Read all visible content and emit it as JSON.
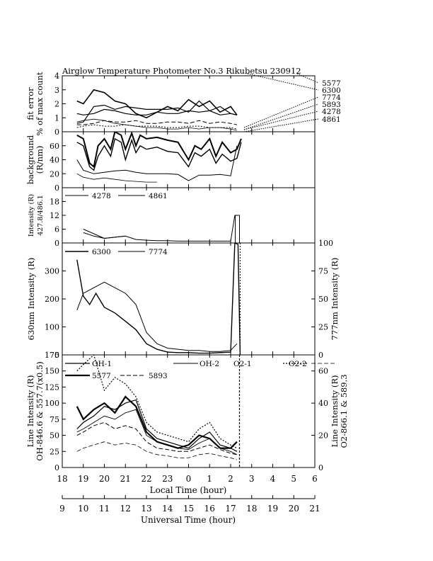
{
  "title": "Airglow Temperature Photometer No.3  Rikubetsu    230912",
  "x_axes": {
    "local": {
      "label": "Local Time (hour)",
      "ticks": [
        "18",
        "19",
        "20",
        "21",
        "22",
        "23",
        "0",
        "1",
        "2",
        "3",
        "4",
        "5",
        "6"
      ]
    },
    "universal": {
      "label": "Universal Time (hour)",
      "ticks": [
        "9",
        "10",
        "11",
        "12",
        "13",
        "14",
        "15",
        "16",
        "17",
        "18",
        "19",
        "20",
        "21"
      ]
    }
  },
  "chart_data": [
    {
      "id": "fit_error",
      "type": "line",
      "ylabel": [
        "fit error",
        "% of max count"
      ],
      "ylim": [
        0,
        4
      ],
      "yticks": [
        "0",
        "1",
        "2",
        "3",
        "4"
      ],
      "legend_labels": [
        "5577",
        "6300",
        "7774",
        "5893",
        "4278",
        "4861"
      ],
      "series": [
        {
          "name": "5577",
          "style": "solid",
          "width": 1.6,
          "x": [
            18.7,
            19.0,
            19.5,
            20.0,
            20.5,
            21.0,
            21.5,
            22.0,
            22.5,
            23.0,
            23.5,
            24.0,
            24.5,
            25.0,
            25.5,
            26.0,
            26.3
          ],
          "y": [
            2.2,
            2.0,
            3.0,
            2.8,
            2.2,
            2.0,
            1.3,
            1.0,
            1.4,
            1.8,
            1.5,
            2.3,
            1.8,
            2.2,
            1.4,
            1.8,
            1.2
          ]
        },
        {
          "name": "6300",
          "style": "solid",
          "width": 1.2,
          "x": [
            18.7,
            19.0,
            19.5,
            20.0,
            20.5,
            21.0,
            21.5,
            22.0,
            22.5,
            23.0,
            23.5,
            24.0,
            24.5,
            25.0,
            25.5,
            26.0,
            26.3
          ],
          "y": [
            1.3,
            1.2,
            1.3,
            1.6,
            1.5,
            1.3,
            1.2,
            1.2,
            1.4,
            1.3,
            1.3,
            1.5,
            1.4,
            1.5,
            1.2,
            1.3,
            1.2
          ]
        },
        {
          "name": "7774",
          "style": "solid",
          "width": 1.2,
          "x": [
            18.7,
            19.0,
            19.5,
            20.0,
            20.5,
            21.0,
            21.5,
            22.0,
            22.5,
            23.0,
            23.5,
            24.0,
            24.5,
            25.0,
            25.5,
            26.0,
            26.3
          ],
          "y": [
            0.6,
            0.7,
            1.8,
            1.9,
            1.6,
            1.8,
            1.7,
            1.6,
            1.6,
            1.6,
            1.7,
            1.4,
            2.2,
            1.5,
            1.8,
            1.3,
            1.2
          ]
        },
        {
          "name": "5893",
          "style": "dash",
          "width": 1.0,
          "x": [
            18.7,
            19.0,
            19.5,
            20.0,
            20.5,
            21.0,
            21.5,
            22.0,
            22.5,
            23.0,
            23.5,
            24.0,
            24.5,
            25.0,
            25.5,
            26.0,
            26.3
          ],
          "y": [
            0.5,
            0.5,
            0.6,
            0.8,
            0.7,
            0.7,
            0.8,
            0.6,
            0.6,
            0.7,
            0.7,
            0.6,
            0.8,
            0.6,
            0.7,
            0.6,
            0.5
          ]
        },
        {
          "name": "4278",
          "style": "dot",
          "width": 1.0,
          "x": [
            18.7,
            19.0,
            19.5,
            20.0,
            20.5,
            21.0,
            21.5,
            22.0,
            22.5,
            23.0,
            23.5,
            24.0,
            24.5,
            25.0,
            25.5,
            26.0,
            26.3
          ],
          "y": [
            0.3,
            0.4,
            0.5,
            0.4,
            0.4,
            0.5,
            0.4,
            0.4,
            0.4,
            0.3,
            0.3,
            0.4,
            0.4,
            0.3,
            0.3,
            0.3,
            0.2
          ]
        },
        {
          "name": "4861",
          "style": "solid",
          "width": 0.8,
          "x": [
            18.7,
            19.0,
            19.5,
            20.0,
            20.5,
            21.0,
            21.5,
            22.0,
            22.5,
            23.0,
            23.5,
            24.0,
            24.5,
            25.0,
            25.5,
            26.0,
            26.3
          ],
          "y": [
            0.7,
            0.8,
            0.9,
            0.8,
            0.6,
            0.5,
            0.4,
            0.3,
            0.3,
            0.2,
            0.2,
            0.3,
            0.2,
            0.3,
            0.3,
            0.2,
            0.1
          ]
        }
      ]
    },
    {
      "id": "background",
      "type": "line",
      "ylabel": [
        "background",
        "(R/nm)"
      ],
      "ylim": [
        0,
        80
      ],
      "yticks": [
        "0",
        "20",
        "40",
        "60"
      ],
      "series": [
        {
          "name": "",
          "style": "solid",
          "width": 2.0,
          "x": [
            18.7,
            19.0,
            19.3,
            19.5,
            19.7,
            20.0,
            20.3,
            20.5,
            20.8,
            21.0,
            21.3,
            21.5,
            21.7,
            22.0,
            22.5,
            23.0,
            23.5,
            24.0,
            24.3,
            24.6,
            25.0,
            25.3,
            25.6,
            26.0,
            26.3,
            26.5
          ],
          "y": [
            75,
            70,
            35,
            30,
            60,
            70,
            55,
            80,
            75,
            55,
            78,
            60,
            75,
            70,
            72,
            68,
            65,
            40,
            60,
            55,
            70,
            45,
            65,
            50,
            55,
            70
          ]
        },
        {
          "name": "",
          "style": "solid",
          "width": 1.4,
          "x": [
            18.7,
            19.0,
            19.3,
            19.5,
            19.7,
            20.0,
            20.3,
            20.5,
            20.8,
            21.0,
            21.3,
            21.5,
            21.7,
            22.0,
            22.5,
            23.0,
            23.5,
            24.0,
            24.3,
            24.6,
            25.0,
            25.3,
            25.6,
            26.0,
            26.3,
            26.5
          ],
          "y": [
            65,
            60,
            30,
            25,
            45,
            60,
            45,
            70,
            65,
            40,
            68,
            50,
            60,
            55,
            58,
            52,
            50,
            30,
            50,
            45,
            55,
            35,
            48,
            38,
            42,
            65
          ]
        },
        {
          "name": "",
          "style": "solid",
          "width": 1.0,
          "x": [
            18.7,
            19.0,
            19.5,
            20.0,
            20.5,
            21.0,
            21.5,
            22.0,
            22.5,
            23.0,
            23.5,
            24.0,
            24.5,
            25.0,
            25.5,
            26.0,
            26.3
          ],
          "y": [
            40,
            25,
            20,
            22,
            24,
            25,
            22,
            20,
            20,
            20,
            19,
            10,
            18,
            18,
            19,
            17,
            60
          ]
        },
        {
          "name": "",
          "style": "solid",
          "width": 0.8,
          "x": [
            18.7,
            19.0,
            19.5,
            20.0,
            20.5,
            21.0,
            21.5,
            22.0,
            22.5
          ],
          "y": [
            20,
            15,
            12,
            14,
            12,
            10,
            9,
            8,
            8
          ]
        }
      ]
    },
    {
      "id": "intensity_4278_4861",
      "type": "line",
      "ylabel": [
        "Intensity (R)",
        "427.8/486.1"
      ],
      "ylim": [
        0,
        24
      ],
      "yticks": [
        "0",
        "6",
        "12",
        "18"
      ],
      "legend_labels": [
        "4278",
        "4861"
      ],
      "series": [
        {
          "name": "4278",
          "style": "solid",
          "width": 1.0,
          "x": [
            19.0,
            19.5,
            20.0,
            20.5,
            21.0,
            21.5,
            22.0,
            22.5,
            23.0,
            23.5,
            24.0,
            24.5,
            25.0,
            25.5,
            26.0,
            26.2,
            26.4
          ],
          "y": [
            6,
            4,
            2,
            2.5,
            3,
            1.5,
            1.2,
            1,
            1,
            0.8,
            0.8,
            0.8,
            0.8,
            0.8,
            0.8,
            12,
            12
          ]
        },
        {
          "name": "4861",
          "style": "solid",
          "width": 1.0,
          "x": [
            19.0,
            19.5,
            20.0,
            20.5,
            21.0
          ],
          "y": [
            4.5,
            3,
            2,
            2.5,
            3
          ]
        }
      ]
    },
    {
      "id": "intensity_6300_7774",
      "type": "line",
      "ylabel": "630nm Intensity (R)",
      "ylabel_right": "777nm Intensity (R)",
      "ylim": [
        0,
        400
      ],
      "yticks": [
        "0",
        "100",
        "200",
        "300"
      ],
      "ylim_right": [
        0,
        100
      ],
      "yticks_right": [
        "0",
        "25",
        "50",
        "75",
        "100"
      ],
      "legend_labels": [
        "6300",
        "7774"
      ],
      "series": [
        {
          "name": "6300",
          "style": "solid",
          "width": 1.4,
          "x": [
            18.7,
            19.0,
            19.3,
            19.6,
            20.0,
            20.5,
            21.0,
            21.5,
            22.0,
            22.5,
            23.0,
            23.5,
            24.0,
            24.5,
            25.0,
            25.5,
            26.0,
            26.2,
            26.35,
            26.45
          ],
          "y": [
            340,
            210,
            180,
            220,
            170,
            150,
            120,
            90,
            40,
            20,
            10,
            8,
            8,
            6,
            6,
            8,
            10,
            400,
            395,
            0
          ]
        },
        {
          "name": "7774",
          "style": "solid",
          "width": 1.0,
          "x": [
            18.7,
            19.0,
            19.5,
            20.0,
            20.5,
            21.0,
            21.5,
            22.0,
            22.5,
            23.0,
            23.5,
            24.0,
            24.5,
            25.0,
            25.5,
            26.0,
            26.3
          ],
          "y": [
            40,
            55,
            60,
            65,
            60,
            55,
            45,
            20,
            10,
            6,
            5,
            4,
            4,
            3,
            3,
            4,
            10
          ]
        }
      ]
    },
    {
      "id": "line_intensity",
      "type": "line",
      "ylabel": [
        "Line Intensity (R)",
        "OH-846.6 & 557.7(x0.5)"
      ],
      "ylabel_right": [
        "Line Intensity (R)",
        "O2-866.1 & 589.3"
      ],
      "ylim": [
        0,
        175
      ],
      "yticks": [
        "0",
        "25",
        "50",
        "75",
        "100",
        "125",
        "150",
        "175"
      ],
      "ylim_right": [
        0,
        70
      ],
      "yticks_right": [
        "0",
        "20",
        "40",
        "60"
      ],
      "legend_labels": [
        "OH-1",
        "OH-2",
        "O2-1",
        "O2-2",
        "5577",
        "5893"
      ],
      "series": [
        {
          "name": "OH-1",
          "style": "solid",
          "width": 1.2,
          "x": [
            18.7,
            19.0,
            19.5,
            20.0,
            20.5,
            21.0,
            21.5,
            22.0,
            22.5,
            23.0,
            23.5,
            24.0,
            24.5,
            25.0,
            25.5,
            26.0,
            26.3
          ],
          "y": [
            60,
            70,
            80,
            95,
            90,
            100,
            105,
            60,
            45,
            40,
            35,
            30,
            45,
            55,
            35,
            30,
            25
          ]
        },
        {
          "name": "OH-2",
          "style": "solid",
          "width": 0.9,
          "x": [
            18.7,
            19.0,
            19.5,
            20.0,
            20.5,
            21.0,
            21.5,
            22.0,
            22.5,
            23.0,
            23.5,
            24.0,
            24.5,
            25.0,
            25.5,
            26.0,
            26.3
          ],
          "y": [
            55,
            60,
            70,
            80,
            75,
            85,
            90,
            50,
            40,
            35,
            30,
            28,
            38,
            45,
            30,
            25,
            20
          ]
        },
        {
          "name": "O2-1",
          "style": "dot",
          "width": 1.2,
          "x": [
            18.7,
            19.0,
            19.5,
            20.0,
            20.5,
            21.0,
            21.5,
            22.0,
            22.5,
            23.0,
            23.5,
            24.0,
            24.5,
            25.0,
            25.5,
            26.0,
            26.3
          ],
          "y": [
            150,
            160,
            175,
            120,
            140,
            130,
            110,
            70,
            55,
            50,
            45,
            40,
            60,
            70,
            45,
            35,
            30
          ]
        },
        {
          "name": "O2-2",
          "style": "dash",
          "width": 0.8,
          "x": [
            18.7,
            19.0,
            19.5,
            20.0,
            20.5,
            21.0,
            21.5,
            22.0,
            22.5,
            23.0,
            23.5,
            24.0,
            24.5,
            25.0,
            25.5,
            26.0,
            26.3
          ],
          "y": [
            25,
            30,
            35,
            40,
            35,
            38,
            35,
            25,
            20,
            18,
            15,
            15,
            20,
            22,
            18,
            15,
            12
          ]
        },
        {
          "name": "5577",
          "style": "solid",
          "width": 2.2,
          "x": [
            18.7,
            19.0,
            19.5,
            20.0,
            20.5,
            21.0,
            21.5,
            22.0,
            22.5,
            23.0,
            23.5,
            24.0,
            24.5,
            25.0,
            25.5,
            26.0,
            26.3
          ],
          "y": [
            95,
            75,
            90,
            100,
            85,
            110,
            95,
            55,
            40,
            35,
            30,
            35,
            50,
            45,
            30,
            30,
            40
          ]
        },
        {
          "name": "5893",
          "style": "dash",
          "width": 1.0,
          "x": [
            18.7,
            19.0,
            19.5,
            20.0,
            20.5,
            21.0,
            21.5,
            22.0,
            22.5,
            23.0,
            23.5,
            24.0,
            24.5,
            25.0,
            25.5,
            26.0,
            26.3
          ],
          "y": [
            50,
            55,
            65,
            70,
            60,
            65,
            60,
            40,
            30,
            28,
            25,
            25,
            30,
            35,
            28,
            22,
            20
          ]
        }
      ]
    }
  ]
}
